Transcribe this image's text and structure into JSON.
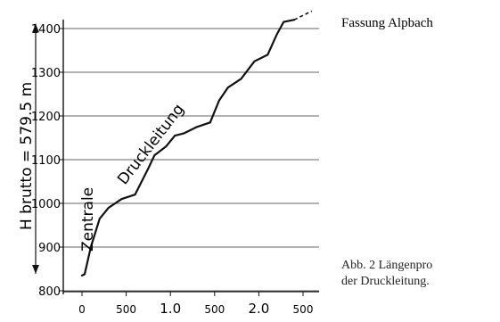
{
  "chart_data": {
    "type": "line",
    "title": "",
    "xlabel": "",
    "ylabel": "",
    "x_tick_labels": [
      "0",
      "500",
      "1.0",
      "500",
      "2.0",
      "500"
    ],
    "y_ticks": [
      800,
      900,
      1000,
      1100,
      1200,
      1300,
      1400
    ],
    "y_tick_labels": [
      "800",
      "900",
      "1000",
      "1100",
      "1200",
      "1300",
      "1400"
    ],
    "xlim": [
      0,
      2600
    ],
    "ylim": [
      800,
      1440
    ],
    "grid": "horizontal",
    "series": [
      {
        "name": "Druckleitung",
        "x": [
          0,
          30,
          100,
          200,
          300,
          450,
          600,
          750,
          820,
          950,
          1050,
          1150,
          1300,
          1450,
          1550,
          1650,
          1800,
          1950,
          2100,
          2200,
          2280,
          2400,
          2600
        ],
        "y": [
          835,
          838,
          900,
          965,
          990,
          1010,
          1020,
          1080,
          1110,
          1130,
          1155,
          1160,
          1175,
          1185,
          1235,
          1265,
          1285,
          1325,
          1340,
          1385,
          1415,
          1420,
          1440
        ]
      }
    ],
    "annotations": {
      "curve_label": "Druckleitung",
      "start_label": "Zentrale",
      "end_label": "Fassung Alpbach",
      "head_label": "H brutto = 579.5 m"
    }
  },
  "caption": {
    "line1": "Abb. 2   Längenpro",
    "line2": "der Druckleitung."
  }
}
